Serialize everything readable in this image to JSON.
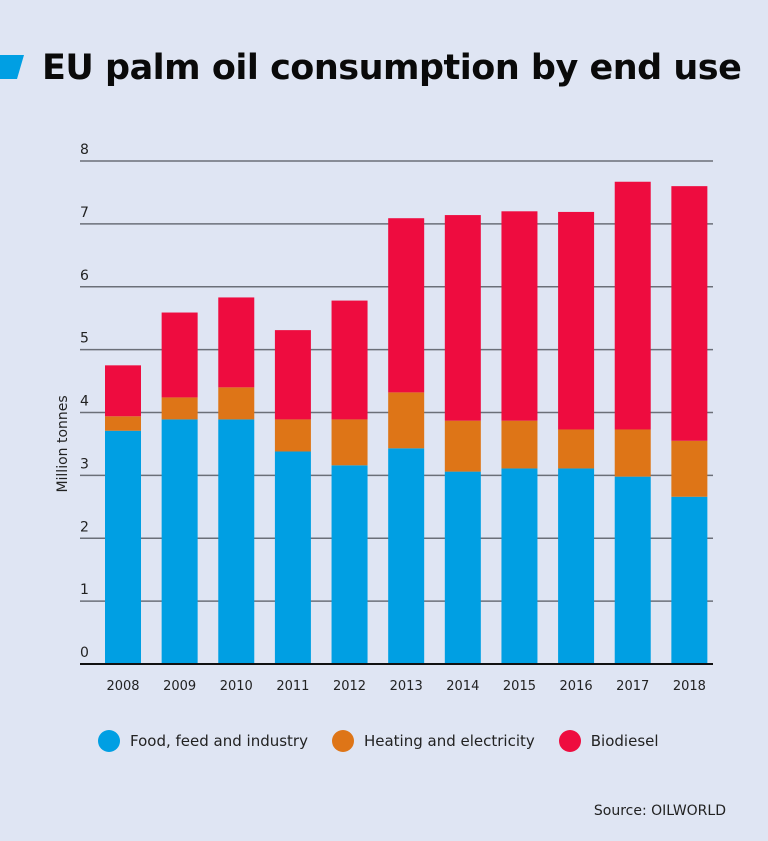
{
  "title": "EU palm oil consumption by end use",
  "source": "Source: OILWORLD",
  "chart_data": {
    "type": "bar",
    "stacked": true,
    "title": "EU palm oil consumption by end use",
    "ylabel": "Million tonnes",
    "xlabel": "",
    "ylim": [
      0,
      8
    ],
    "yticks": [
      0,
      1,
      2,
      3,
      4,
      5,
      6,
      7,
      8
    ],
    "grid": true,
    "legend_position": "bottom",
    "categories": [
      "2008",
      "2009",
      "2010",
      "2011",
      "2012",
      "2013",
      "2014",
      "2015",
      "2016",
      "2017",
      "2018"
    ],
    "series": [
      {
        "name": "Food, feed and industry",
        "color": "#009fe3",
        "values": [
          3.71,
          3.89,
          3.89,
          3.38,
          3.16,
          3.43,
          3.06,
          3.11,
          3.11,
          2.98,
          2.66
        ]
      },
      {
        "name": "Heating and electricity",
        "color": "#de7517",
        "values": [
          0.23,
          0.35,
          0.51,
          0.51,
          0.73,
          0.89,
          0.81,
          0.76,
          0.62,
          0.75,
          0.89
        ]
      },
      {
        "name": "Biodiesel",
        "color": "#ee0c3f",
        "values": [
          0.81,
          1.35,
          1.43,
          1.42,
          1.89,
          2.77,
          3.27,
          3.33,
          3.46,
          3.94,
          4.05
        ]
      }
    ]
  }
}
